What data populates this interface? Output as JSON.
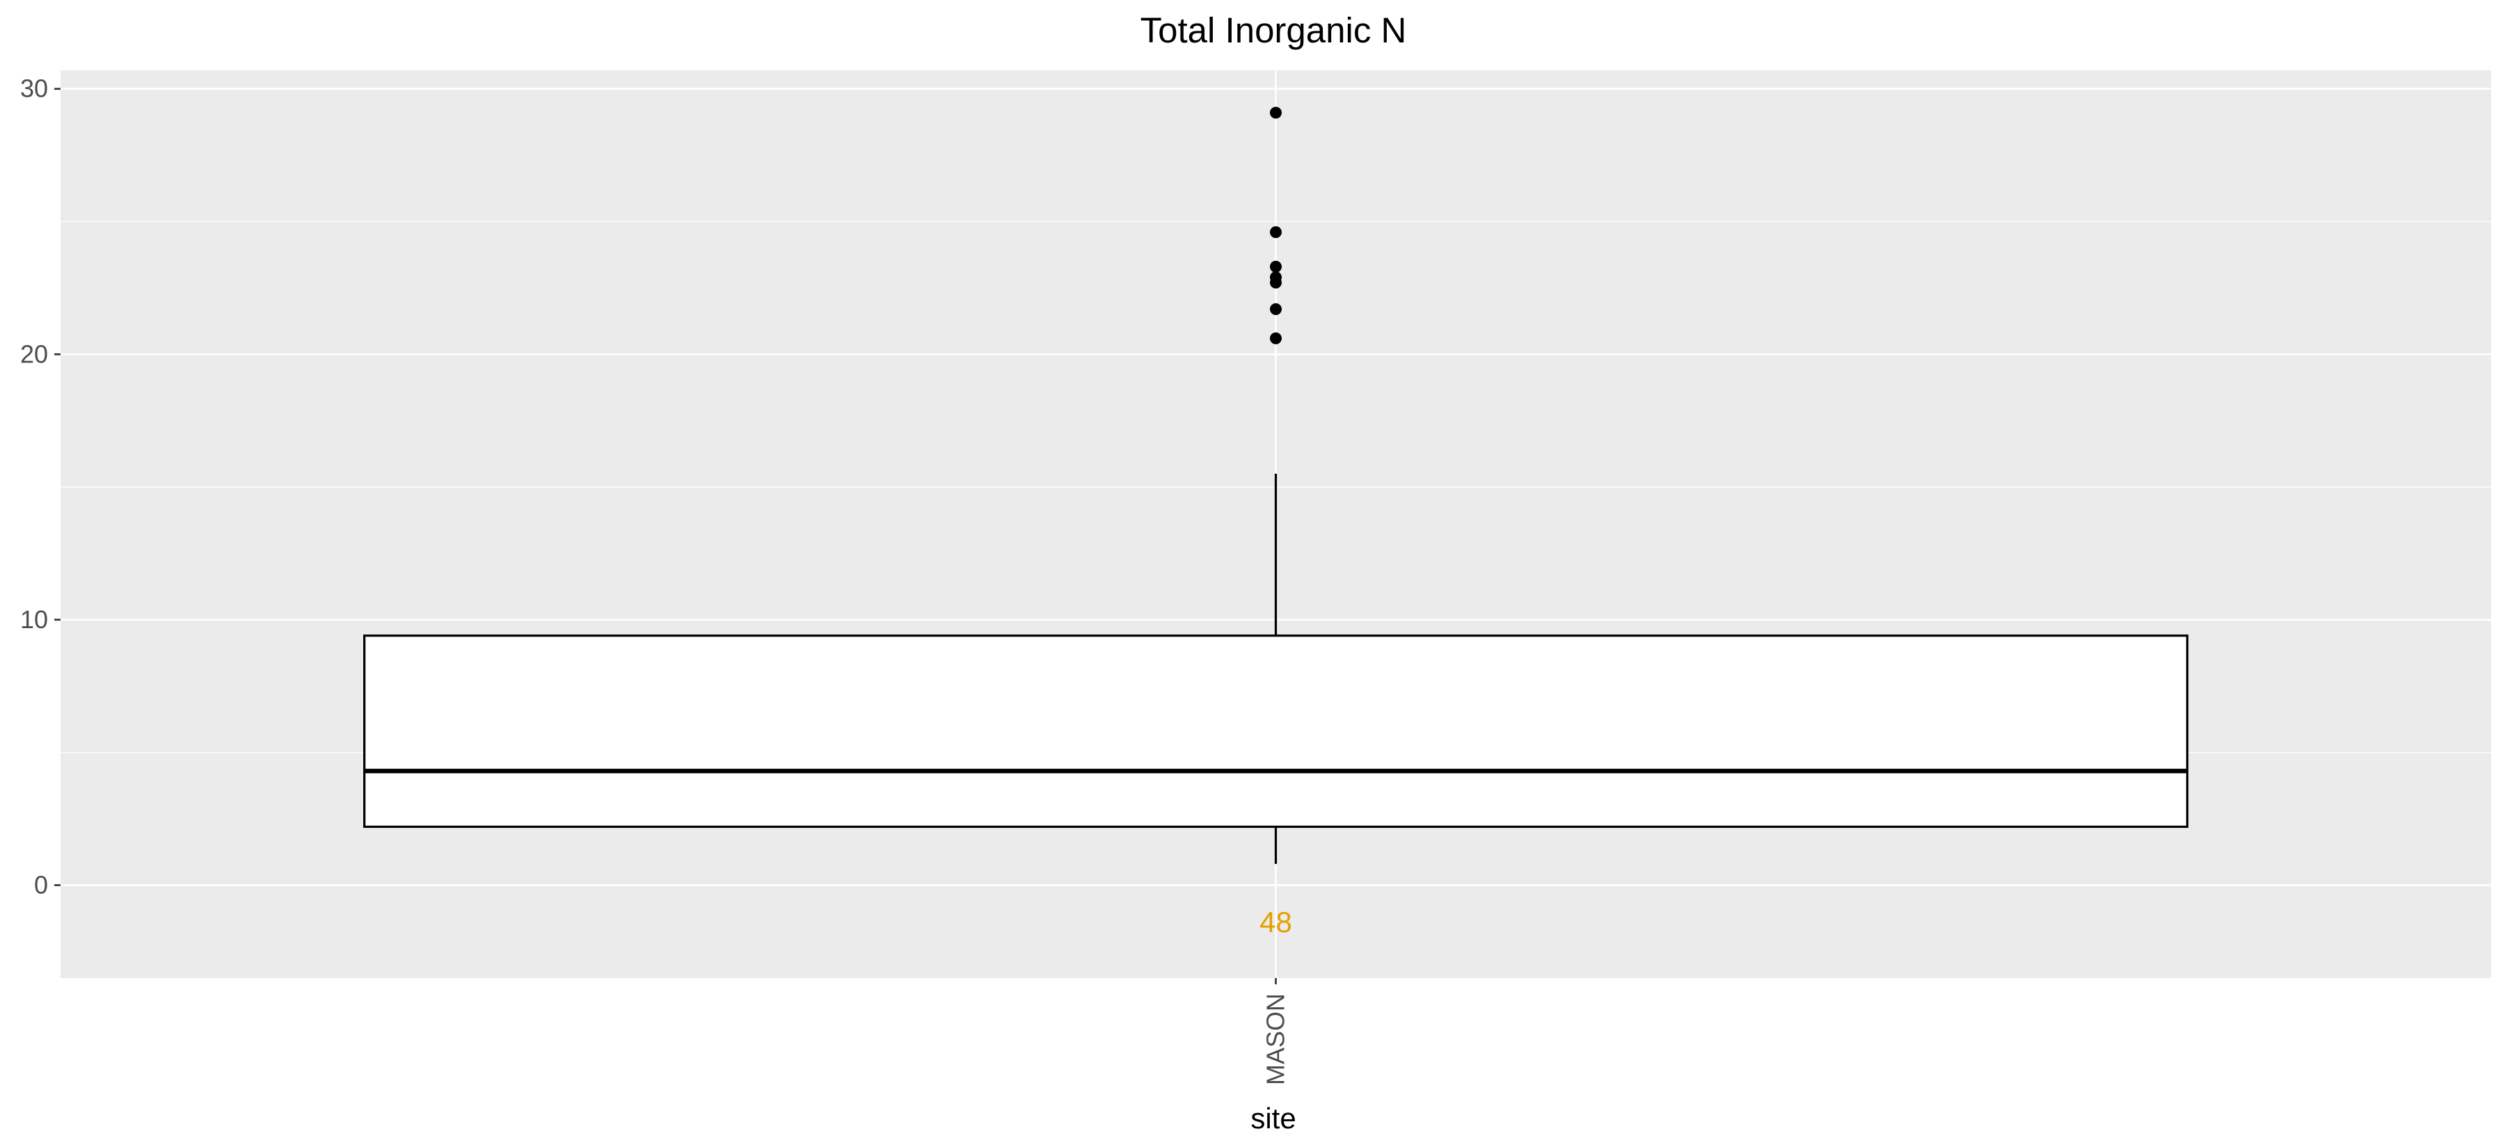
{
  "chart_data": {
    "type": "boxplot",
    "title": "Total Inorganic N",
    "xlabel": "site",
    "ylabel": "",
    "categories": [
      "MASON"
    ],
    "ylim": [
      -3.5,
      30.7
    ],
    "yticks": [
      0,
      10,
      20,
      30
    ],
    "ytick_labels": [
      "0",
      "10",
      "20",
      "30"
    ],
    "boxes": [
      {
        "category": "MASON",
        "q1": 2.2,
        "median": 4.3,
        "q3": 9.4,
        "whisker_low": 0.8,
        "whisker_high": 15.5,
        "outliers": [
          20.6,
          21.7,
          22.7,
          22.9,
          23.3,
          24.6,
          29.1
        ],
        "count_label": "48"
      }
    ],
    "grid": true,
    "legend": "none",
    "colors": {
      "panel_background": "#ebebeb",
      "grid": "#ffffff",
      "box_fill": "#ffffff",
      "box_line": "#000000",
      "count_label": "#e69f00",
      "tick_text": "#4d4d4d"
    }
  }
}
